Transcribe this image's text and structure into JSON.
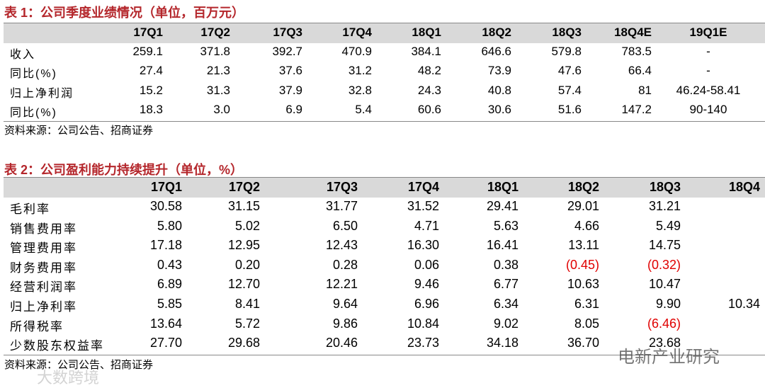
{
  "table1": {
    "title": "表 1：公司季度业绩情况（单位，百万元）",
    "header": [
      "17Q1",
      "17Q2",
      "17Q3",
      "17Q4",
      "18Q1",
      "18Q2",
      "18Q3",
      "18Q4E",
      "19Q1E"
    ],
    "rows": [
      [
        "收入",
        "259.1",
        "371.8",
        "392.7",
        "470.9",
        "384.1",
        "646.6",
        "579.8",
        "783.5",
        "-"
      ],
      [
        "同比(%)",
        "27.4",
        "21.3",
        "37.6",
        "31.2",
        "48.2",
        "73.9",
        "47.6",
        "66.4",
        "-"
      ],
      [
        "归上净利润",
        "15.2",
        "31.3",
        "37.9",
        "32.8",
        "24.3",
        "40.8",
        "57.4",
        "81",
        "46.24-58.41"
      ],
      [
        "同比(%)",
        "18.3",
        "3.0",
        "6.9",
        "5.4",
        "60.6",
        "30.6",
        "51.6",
        "147.2",
        "90-140"
      ]
    ],
    "source": "资料来源：公司公告、招商证券"
  },
  "table2": {
    "title": "表 2：公司盈利能力持续提升（单位，%）",
    "header": [
      "17Q1",
      "17Q2",
      "17Q3",
      "17Q4",
      "18Q1",
      "18Q2",
      "18Q3",
      "18Q4"
    ],
    "rows": [
      [
        "毛利率",
        "30.58",
        "31.15",
        "31.77",
        "31.52",
        "29.41",
        "29.01",
        "31.21",
        null
      ],
      [
        "销售费用率",
        "5.80",
        "5.02",
        "6.50",
        "4.71",
        "5.63",
        "4.66",
        "5.49",
        null
      ],
      [
        "管理费用率",
        "17.18",
        "12.95",
        "12.43",
        "16.30",
        "16.41",
        "13.11",
        "14.75",
        null
      ],
      [
        "财务费用率",
        "0.43",
        "0.20",
        "0.28",
        "0.06",
        "0.38",
        "(0.45)",
        "(0.32)",
        null
      ],
      [
        "经营利润率",
        "6.89",
        "12.70",
        "12.21",
        "9.46",
        "6.77",
        "10.63",
        "10.47",
        null
      ],
      [
        "归上净利率",
        "5.85",
        "8.41",
        "9.64",
        "6.96",
        "6.34",
        "6.31",
        "9.90",
        "10.34"
      ],
      [
        "所得税率",
        "13.64",
        "5.72",
        "9.86",
        "10.84",
        "9.02",
        "8.05",
        "(6.46)",
        null
      ],
      [
        "少数股东权益率",
        "27.70",
        "29.68",
        "20.46",
        "23.73",
        "34.18",
        "36.70",
        "23.68",
        null
      ]
    ],
    "source": "资料来源：公司公告、招商证券"
  },
  "watermarks": [
    "电新产业研究",
    "大数跨境"
  ]
}
